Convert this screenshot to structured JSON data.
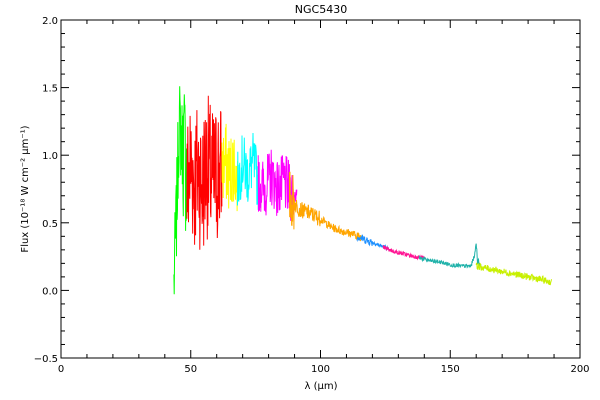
{
  "chart_data": {
    "type": "line",
    "title": "NGC5430",
    "xlabel": "λ (μm)",
    "ylabel": "Flux (10⁻¹⁸ W cm⁻² μm⁻¹)",
    "xlim": [
      0,
      200
    ],
    "ylim": [
      -0.5,
      2.0
    ],
    "x_ticks": [
      "0",
      "50",
      "100",
      "150",
      "200"
    ],
    "y_ticks": [
      "−0.5",
      "0.0",
      "0.5",
      "1.0",
      "1.5",
      "2.0"
    ],
    "grid": false,
    "legend": "none",
    "series": [
      {
        "color": "#00ff00",
        "x": [
          43.5,
          44.5,
          45.5,
          46.5,
          47.5,
          48.5
        ],
        "y": [
          0.05,
          0.55,
          1.25,
          1.1,
          1.05,
          0.85
        ]
      },
      {
        "color": "#ff0000",
        "x": [
          48.5,
          50,
          51.5,
          53,
          54.5,
          56,
          57.5,
          59,
          60.5,
          62
        ],
        "y": [
          0.75,
          0.95,
          0.8,
          0.9,
          0.75,
          0.95,
          0.85,
          0.8,
          0.9,
          0.85
        ]
      },
      {
        "color": "#ffff00",
        "x": [
          62,
          63.5,
          65,
          66.5,
          68
        ],
        "y": [
          0.9,
          0.95,
          0.85,
          0.95,
          0.8
        ]
      },
      {
        "color": "#00ffff",
        "x": [
          68,
          70,
          72,
          74,
          76
        ],
        "y": [
          0.8,
          0.95,
          0.85,
          0.95,
          0.8
        ]
      },
      {
        "color": "#ff00ff",
        "x": [
          76,
          78.5,
          81,
          83.5,
          86,
          88.5,
          91
        ],
        "y": [
          0.8,
          0.75,
          0.85,
          0.75,
          0.8,
          0.72,
          0.7
        ]
      },
      {
        "color": "#ffa500",
        "x": [
          88,
          92,
          96,
          100,
          104,
          108,
          112,
          116
        ],
        "y": [
          0.68,
          0.6,
          0.57,
          0.53,
          0.47,
          0.44,
          0.42,
          0.39
        ]
      },
      {
        "color": "#1e90ff",
        "x": [
          114,
          118,
          122,
          126
        ],
        "y": [
          0.4,
          0.37,
          0.34,
          0.31
        ]
      },
      {
        "color": "#ff1493",
        "x": [
          124,
          128,
          132,
          136,
          140
        ],
        "y": [
          0.32,
          0.29,
          0.27,
          0.25,
          0.24
        ]
      },
      {
        "color": "#20b2aa",
        "x": [
          138,
          142,
          146,
          150,
          154,
          158,
          159.5,
          160,
          160.5,
          162
        ],
        "y": [
          0.24,
          0.22,
          0.21,
          0.19,
          0.18,
          0.18,
          0.27,
          0.36,
          0.22,
          0.18
        ]
      },
      {
        "color": "#c8f000",
        "x": [
          160,
          165,
          170,
          175,
          180,
          185,
          189
        ],
        "y": [
          0.18,
          0.16,
          0.14,
          0.12,
          0.1,
          0.08,
          0.06
        ]
      }
    ]
  }
}
